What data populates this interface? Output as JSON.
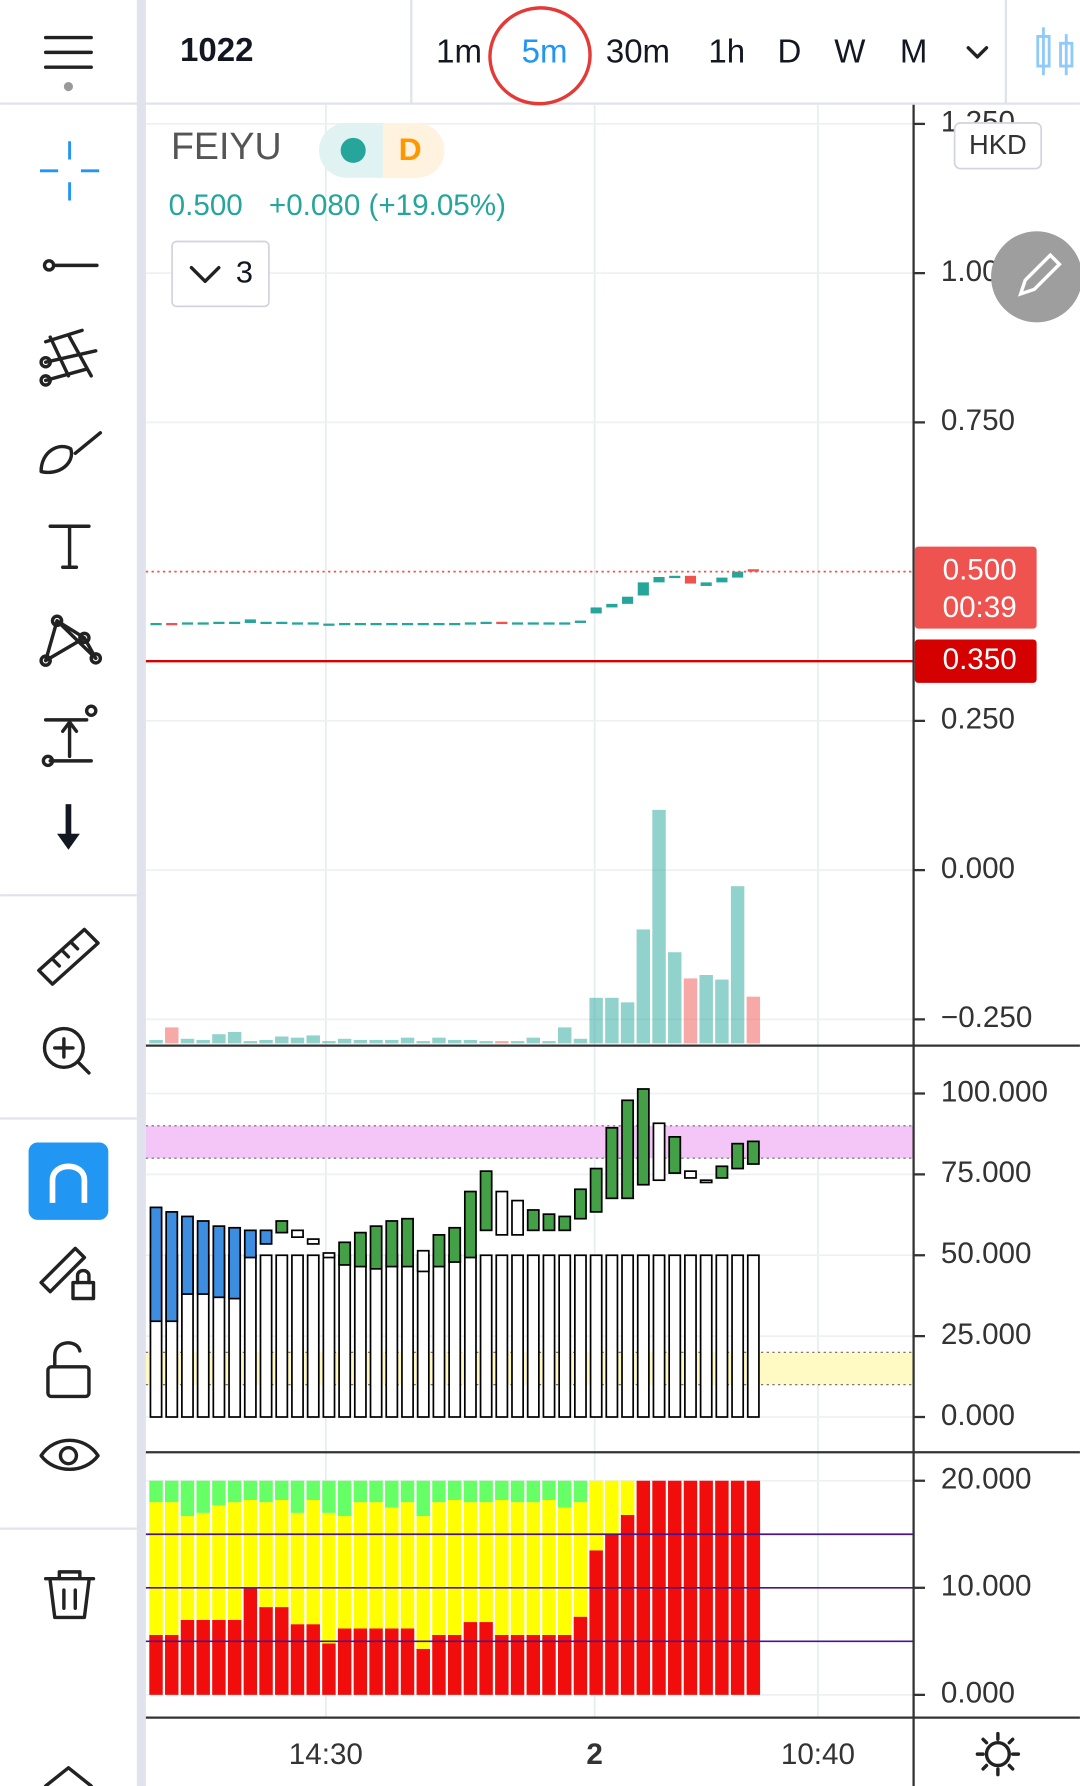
{
  "header": {
    "symbol": "1022",
    "timeframes": [
      {
        "label": "1m"
      },
      {
        "label": "5m",
        "selected": true
      },
      {
        "label": "30m"
      },
      {
        "label": "1h"
      },
      {
        "label": "D"
      },
      {
        "label": "W"
      },
      {
        "label": "M"
      }
    ]
  },
  "legend": {
    "name": "FEIYU",
    "badge": "D",
    "price": "0.500",
    "change": "+0.080 (+19.05%)",
    "collapsed_count": "3"
  },
  "time_labels": [
    "14:30",
    "2",
    "10:40"
  ],
  "chart_data": [
    {
      "type": "candlestick",
      "currency": "HKD",
      "up_color": "#26a69a",
      "down_color": "#ef5350",
      "open": [
        0.412,
        0.414,
        0.413,
        0.415,
        0.415,
        0.416,
        0.414,
        0.416,
        0.416,
        0.415,
        0.413,
        0.413,
        0.414,
        0.414,
        0.414,
        0.414,
        0.414,
        0.413,
        0.414,
        0.414,
        0.413,
        0.414,
        0.416,
        0.415,
        0.415,
        0.415,
        0.415,
        0.414,
        0.43,
        0.44,
        0.446,
        0.46,
        0.482,
        0.491,
        0.493,
        0.476,
        0.482,
        0.49,
        0.504
      ],
      "close": [
        0.414,
        0.413,
        0.415,
        0.415,
        0.416,
        0.416,
        0.42,
        0.416,
        0.416,
        0.415,
        0.415,
        0.413,
        0.414,
        0.414,
        0.414,
        0.414,
        0.414,
        0.414,
        0.414,
        0.414,
        0.415,
        0.416,
        0.414,
        0.415,
        0.415,
        0.415,
        0.415,
        0.418,
        0.44,
        0.446,
        0.458,
        0.482,
        0.491,
        0.493,
        0.48,
        0.482,
        0.49,
        0.5,
        0.5
      ],
      "volume": [
        3,
        14,
        4,
        3,
        8,
        10,
        2,
        3,
        6,
        5,
        7,
        2,
        4,
        3,
        3,
        3,
        5,
        2,
        5,
        3,
        3,
        2,
        2,
        2,
        5,
        2,
        14,
        4,
        40,
        40,
        36,
        100,
        205,
        80,
        57,
        60,
        56,
        138,
        41
      ],
      "ylim": [
        -0.294,
        1.282
      ],
      "yticks": [
        {
          "value": 1.25,
          "label": "1.250"
        },
        {
          "value": 1,
          "label": "1.000"
        },
        {
          "value": 0.75,
          "label": "0.750"
        },
        {
          "value": 0.25,
          "label": "0.250"
        },
        {
          "value": 0,
          "label": "0.000"
        },
        {
          "value": -0.25,
          "label": "−0.250"
        }
      ],
      "last_price": {
        "value": 0.5,
        "label": "0.500",
        "countdown": "00:39",
        "color": "#ef5350"
      },
      "price_line": {
        "value": 0.35,
        "label": "0.350",
        "color": "#d50000"
      }
    },
    {
      "type": "bar",
      "base": [
        50,
        50,
        50,
        50,
        50,
        50,
        50,
        50,
        50,
        50,
        50,
        50,
        50,
        50,
        50,
        50,
        50,
        50,
        50,
        50,
        50,
        50,
        50,
        50,
        50,
        50,
        50,
        50,
        50,
        50,
        50,
        50,
        50,
        50,
        50,
        50,
        50,
        50,
        50
      ],
      "low": [
        29.6,
        29.6,
        38,
        38,
        37,
        36.6,
        49.3,
        53.5,
        57,
        55.6,
        53.5,
        49.3,
        47,
        46.5,
        45.8,
        46.5,
        46.5,
        45,
        46.5,
        47.9,
        49.3,
        57.7,
        56.3,
        56.3,
        57.7,
        57.7,
        57.7,
        61.3,
        63.4,
        67.6,
        67.6,
        71.8,
        73.2,
        75.4,
        73.9,
        72.5,
        73.9,
        76.8,
        78.2
      ],
      "high": [
        64.8,
        63.4,
        62,
        60.6,
        59,
        58.5,
        57.7,
        57.7,
        60.6,
        57.7,
        55,
        50.7,
        54,
        57,
        59,
        60.6,
        61.3,
        51.4,
        56.3,
        58.5,
        69.7,
        76,
        69.7,
        66.9,
        64,
        62.7,
        62,
        70.4,
        76.8,
        89.4,
        97.9,
        101.4,
        90.8,
        86.6,
        76,
        73.2,
        77.5,
        84.5,
        85.2
      ],
      "colors": [
        "#3d8ee0",
        "#3d8ee0",
        "#3d8ee0",
        "#3d8ee0",
        "#3d8ee0",
        "#3d8ee0",
        "#3d8ee0",
        "#3d8ee0",
        "#43a047",
        "#ffffff",
        "#ffffff",
        "#ffffff",
        "#43a047",
        "#43a047",
        "#43a047",
        "#43a047",
        "#43a047",
        "#ffffff",
        "#43a047",
        "#43a047",
        "#43a047",
        "#43a047",
        "#ffffff",
        "#ffffff",
        "#43a047",
        "#43a047",
        "#43a047",
        "#43a047",
        "#43a047",
        "#43a047",
        "#43a047",
        "#43a047",
        "#ffffff",
        "#43a047",
        "#ffffff",
        "#ffffff",
        "#43a047",
        "#43a047",
        "#43a047"
      ],
      "bands": [
        {
          "range": [
            80,
            90
          ],
          "color": "#f3c6f7"
        },
        {
          "range": [
            10,
            20
          ],
          "color": "#fff9c4"
        }
      ],
      "ylim": [
        -10.9,
        114.8
      ],
      "yticks": [
        {
          "value": 100,
          "label": "100.000"
        },
        {
          "value": 75,
          "label": "75.000"
        },
        {
          "value": 50,
          "label": "50.000"
        },
        {
          "value": 25,
          "label": "25.000"
        },
        {
          "value": 0,
          "label": "0.000"
        }
      ]
    },
    {
      "type": "stacked_bar",
      "series": [
        {
          "color": "#f20d0d",
          "values": [
            5.6,
            5.6,
            7,
            7,
            7,
            7,
            10,
            8.2,
            8.2,
            6.6,
            6.6,
            4.8,
            6.2,
            6.2,
            6.2,
            6.2,
            6.2,
            4.3,
            5.6,
            5.6,
            6.8,
            6.8,
            5.6,
            5.6,
            5.6,
            5.6,
            5.6,
            7.3,
            13.5,
            15,
            16.8,
            20,
            20,
            20,
            20,
            20,
            20,
            20,
            20
          ]
        },
        {
          "color": "#ffff00",
          "values": [
            12.4,
            12.4,
            9.7,
            10,
            10.7,
            11,
            8.2,
            9.8,
            10,
            10.4,
            11.6,
            12.2,
            10.5,
            11.8,
            11.8,
            11.3,
            11.8,
            12.4,
            12.4,
            12.6,
            11.2,
            11.2,
            12.6,
            12.4,
            12.4,
            12.6,
            11.9,
            10.7,
            6.5,
            5,
            3.2,
            0,
            0,
            0,
            0,
            0,
            0,
            0,
            0
          ]
        },
        {
          "color": "#66ff66",
          "values": [
            2,
            2,
            3.3,
            3,
            2.3,
            2,
            1.8,
            2,
            1.8,
            3,
            1.8,
            3,
            3.3,
            2,
            2,
            2.5,
            2,
            3.3,
            2,
            1.8,
            2,
            2,
            1.8,
            2,
            2,
            1.8,
            2.5,
            2,
            0,
            0,
            0,
            0,
            0,
            0,
            0,
            0,
            0,
            0,
            0
          ]
        }
      ],
      "hlines": [
        15,
        10,
        5
      ],
      "hline_color": "#4a148c",
      "ylim": [
        -2.13,
        22.66
      ],
      "yticks": [
        {
          "value": 20,
          "label": "20.000"
        },
        {
          "value": 10,
          "label": "10.000"
        },
        {
          "value": 0,
          "label": "0.000"
        }
      ]
    }
  ]
}
